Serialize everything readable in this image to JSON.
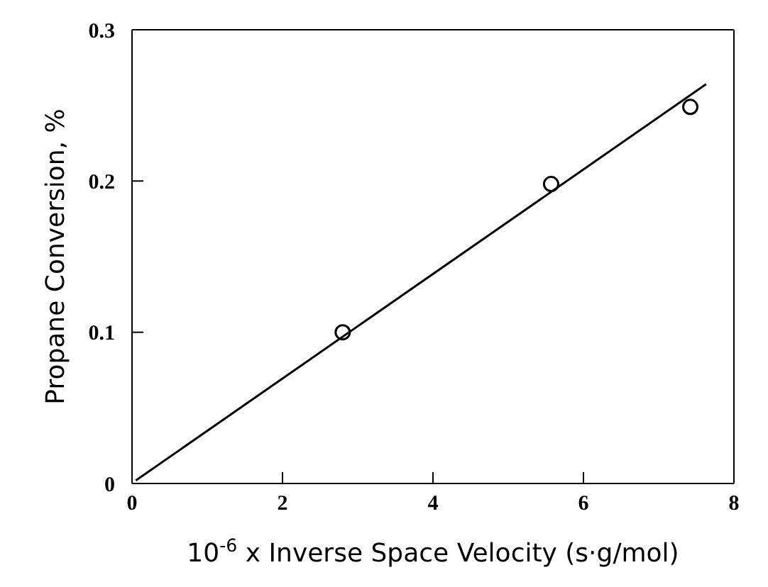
{
  "chart_data": {
    "type": "scatter",
    "xlabel": "10$^{-6}$ x Inverse Space Velocity (s·g/mol)",
    "ylabel": "Propane Conversion, %",
    "x": [
      2.8,
      5.57,
      7.42
    ],
    "series": [
      {
        "color": "#000000",
        "values": [
          0.1,
          0.198,
          0.249
        ],
        "marker": "circle"
      },
      {
        "type": "line",
        "color": "#000000",
        "x": [
          0.05,
          7.63
        ],
        "values": [
          0.002,
          0.264
        ],
        "marker": "none",
        "line_style": "solid"
      }
    ],
    "xlim": [
      0,
      8
    ],
    "xticks": [
      0,
      2,
      4,
      6,
      8
    ],
    "ylim": [
      0,
      0.3
    ],
    "yticks": [
      0,
      0.1,
      0.2,
      0.3
    ],
    "grid": false,
    "legend": false
  }
}
